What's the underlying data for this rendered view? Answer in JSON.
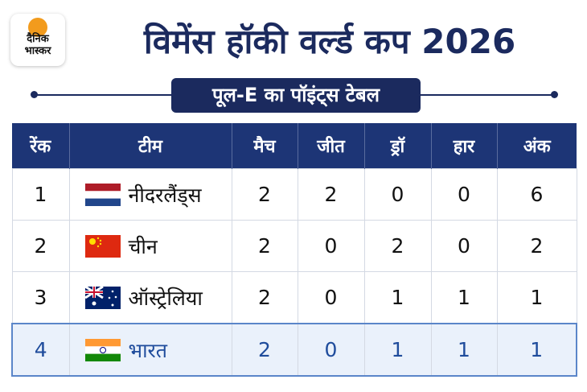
{
  "logo": {
    "line1": "दैनिक",
    "line2": "भास्कर"
  },
  "header": {
    "title": "विमेंस हॉकी वर्ल्ड कप 2026",
    "subtitle": "पूल-E का पॉइंट्स टेबल"
  },
  "table": {
    "columns": [
      "रेंक",
      "टीम",
      "मैच",
      "जीत",
      "ड्रॉ",
      "हार",
      "अंक"
    ],
    "rows": [
      [
        1,
        "नीदरलैंड्स",
        2,
        2,
        0,
        0,
        6
      ],
      [
        2,
        "चीन",
        2,
        0,
        2,
        0,
        2
      ],
      [
        3,
        "ऑस्ट्रेलिया",
        2,
        0,
        1,
        1,
        1
      ],
      [
        4,
        "भारत",
        2,
        0,
        1,
        1,
        1
      ]
    ]
  }
}
